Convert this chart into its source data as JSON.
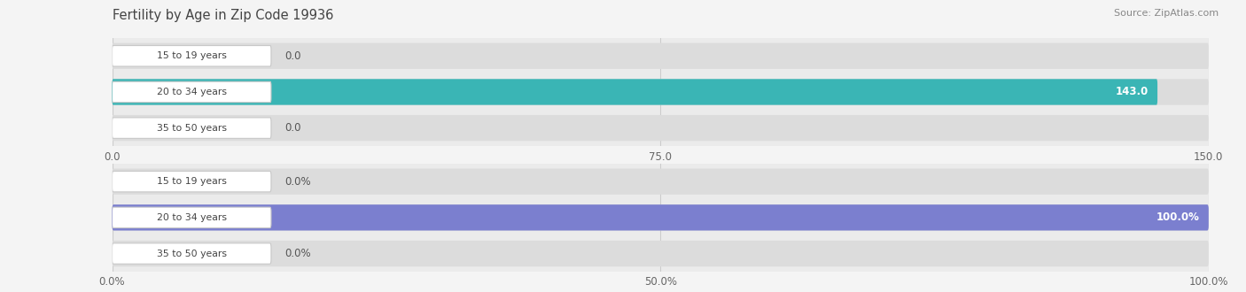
{
  "title": "Fertility by Age in Zip Code 19936",
  "source": "Source: ZipAtlas.com",
  "background_color": "#f4f4f4",
  "chart_bg": "#ebebeb",
  "top_chart": {
    "categories": [
      "15 to 19 years",
      "20 to 34 years",
      "35 to 50 years"
    ],
    "values": [
      0.0,
      143.0,
      0.0
    ],
    "max_val": 150.0,
    "tick_vals": [
      0.0,
      75.0,
      150.0
    ],
    "bar_color": "#3ab5b5",
    "bar_bg_color": "#dcdcdc",
    "value_label_color_inside": "#ffffff",
    "value_label_color_outside": "#555555"
  },
  "bottom_chart": {
    "categories": [
      "15 to 19 years",
      "20 to 34 years",
      "35 to 50 years"
    ],
    "values": [
      0.0,
      100.0,
      0.0
    ],
    "max_val": 100.0,
    "tick_vals": [
      0.0,
      50.0,
      100.0
    ],
    "tick_labels": [
      "0.0%",
      "50.0%",
      "100.0%"
    ],
    "bar_color": "#7b7fcf",
    "bar_bg_color": "#dcdcdc",
    "value_label_color_inside": "#ffffff",
    "value_label_color_outside": "#555555"
  }
}
